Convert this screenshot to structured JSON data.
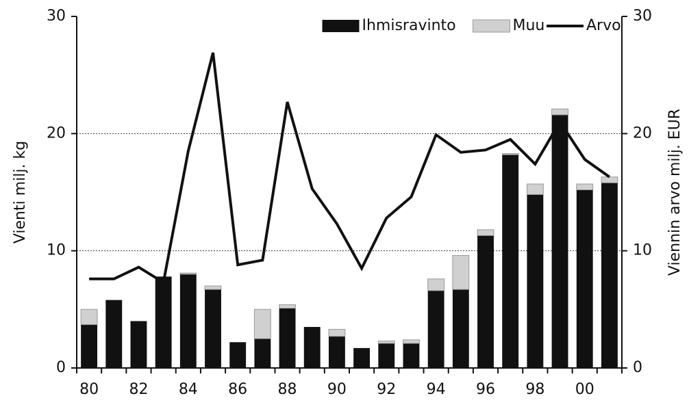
{
  "chart_data": {
    "type": "bar",
    "categories": [
      "80",
      null,
      "82",
      null,
      "84",
      null,
      "86",
      null,
      "88",
      null,
      "90",
      null,
      "92",
      null,
      "94",
      null,
      "96",
      null,
      "98",
      null,
      "00",
      null
    ],
    "series": [
      {
        "name": "Ihmisravinto",
        "color": "#111111",
        "values": [
          3.7,
          5.8,
          4.0,
          7.8,
          8.0,
          6.7,
          2.2,
          2.5,
          5.1,
          3.5,
          2.7,
          1.7,
          2.1,
          2.1,
          6.6,
          6.7,
          11.3,
          18.2,
          14.8,
          21.6,
          15.2,
          15.8
        ]
      },
      {
        "name": "Muu",
        "color": "#d0d0d0",
        "values": [
          1.3,
          0,
          0,
          0,
          0.1,
          0.3,
          0,
          2.5,
          0.3,
          0,
          0.6,
          0,
          0.2,
          0.3,
          1.0,
          2.9,
          0.5,
          0.1,
          0.9,
          0.5,
          0.5,
          0.5
        ]
      },
      {
        "name": "Arvo",
        "color": "#111111",
        "type": "line",
        "axis": "y2",
        "values": [
          7.6,
          7.6,
          8.6,
          7.3,
          18.5,
          26.9,
          8.8,
          9.2,
          22.7,
          15.3,
          12.3,
          8.5,
          12.8,
          14.6,
          19.9,
          18.4,
          18.6,
          19.5,
          17.4,
          21.0,
          17.8,
          16.3
        ]
      }
    ],
    "ylabel": "Vienti milj. kg",
    "y2label": "Viennin arvo milj. EUR",
    "ylim": [
      0,
      30
    ],
    "yticks": [
      0,
      10,
      20,
      30
    ],
    "y2lim": [
      0,
      30
    ],
    "y2ticks": [
      0,
      10,
      20,
      30
    ],
    "grid": true,
    "legend": "upper right"
  }
}
